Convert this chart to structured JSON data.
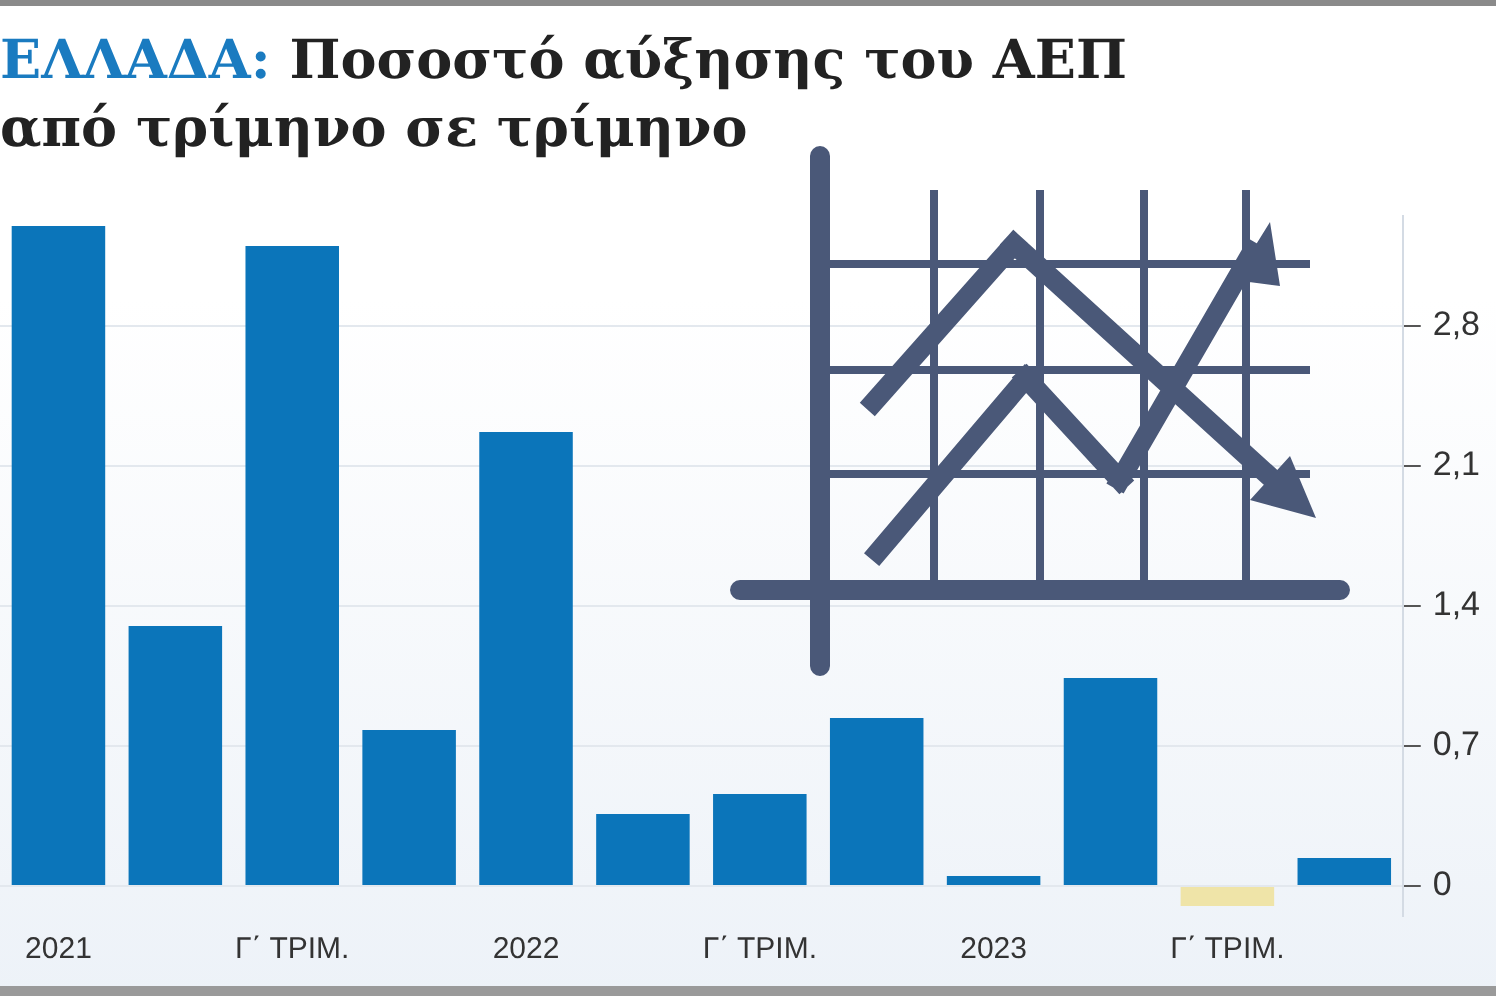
{
  "chart_data": {
    "type": "bar",
    "title": "ΕΛΛΑΔΑ: Ποσοστό αύξησης του ΑΕΠ από τρίμηνο σε τρίμηνο",
    "categories": [
      "2021",
      null,
      "Γ΄ ΤΡΙΜ.",
      null,
      "2022",
      null,
      "Γ΄ ΤΡΙΜ.",
      null,
      "2023",
      null,
      "Γ΄ ΤΡΙΜ.",
      null
    ],
    "values": [
      3.3,
      1.3,
      3.2,
      0.78,
      2.27,
      0.36,
      0.46,
      0.84,
      0.05,
      1.04,
      -0.1,
      0.14
    ],
    "colors": [
      "#0b75ba",
      "#0b75ba",
      "#0b75ba",
      "#0b75ba",
      "#0b75ba",
      "#0b75ba",
      "#0b75ba",
      "#0b75ba",
      "#0b75ba",
      "#0b75ba",
      "#efe4a8",
      "#0b75ba"
    ],
    "ylim": [
      -0.15,
      3.35
    ],
    "yticks": [
      0,
      {
        "value": 0.7,
        "label": "0,7"
      },
      {
        "value": 1.4,
        "label": "1,4"
      },
      {
        "value": 2.1,
        "label": "2,1"
      },
      {
        "value": 2.8,
        "label": "2,8"
      }
    ],
    "grid": "y"
  }
}
